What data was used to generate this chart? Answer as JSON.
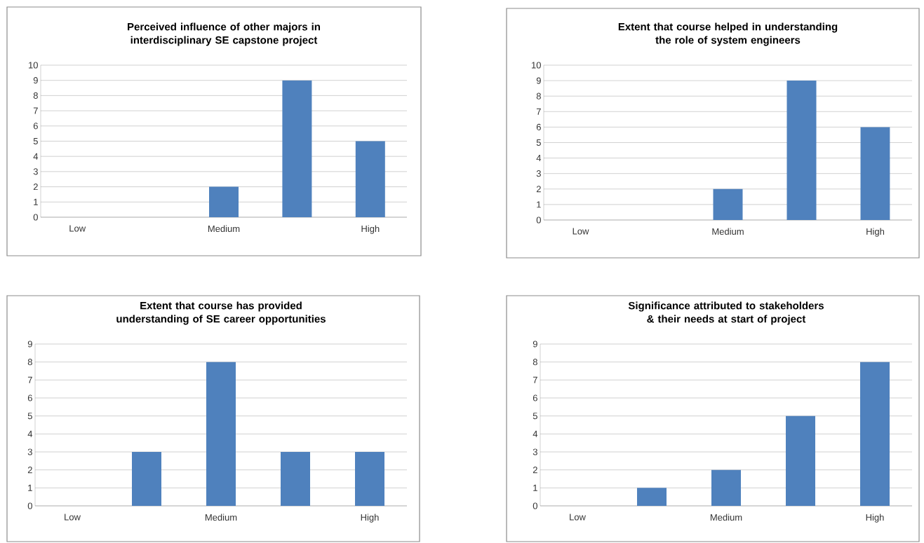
{
  "chart_data": [
    {
      "type": "bar",
      "title": "Perceived influence of other majors in interdisciplinary SE capstone project",
      "categories": [
        "Low",
        null,
        "Medium",
        null,
        "High"
      ],
      "values": [
        0,
        0,
        2,
        9,
        5
      ],
      "color": "#4f81bd",
      "ylim": [
        0,
        10
      ],
      "yticks": [
        0,
        1,
        2,
        3,
        4,
        5,
        6,
        7,
        8,
        9,
        10
      ],
      "grid": "y"
    },
    {
      "type": "bar",
      "title": "Extent that course helped in understanding the role of system engineers",
      "categories": [
        "Low",
        null,
        "Medium",
        null,
        "High"
      ],
      "values": [
        0,
        0,
        2,
        9,
        6
      ],
      "color": "#4f81bd",
      "ylim": [
        0,
        10
      ],
      "yticks": [
        0,
        1,
        2,
        3,
        4,
        5,
        6,
        7,
        8,
        9,
        10
      ],
      "grid": "y"
    },
    {
      "type": "bar",
      "title": "Extent that course has provided understanding of SE career opportunities",
      "categories": [
        "Low",
        null,
        "Medium",
        null,
        "High"
      ],
      "values": [
        0,
        3,
        8,
        3,
        3
      ],
      "color": "#4f81bd",
      "ylim": [
        0,
        9
      ],
      "yticks": [
        0,
        1,
        2,
        3,
        4,
        5,
        6,
        7,
        8,
        9
      ],
      "grid": "y"
    },
    {
      "type": "bar",
      "title": "Significance attributed to stakeholders & their needs at start of project",
      "categories": [
        "Low",
        null,
        "Medium",
        null,
        "High"
      ],
      "values": [
        0,
        1,
        2,
        5,
        8
      ],
      "color": "#4f81bd",
      "ylim": [
        0,
        9
      ],
      "yticks": [
        0,
        1,
        2,
        3,
        4,
        5,
        6,
        7,
        8,
        9
      ],
      "grid": "y"
    }
  ]
}
